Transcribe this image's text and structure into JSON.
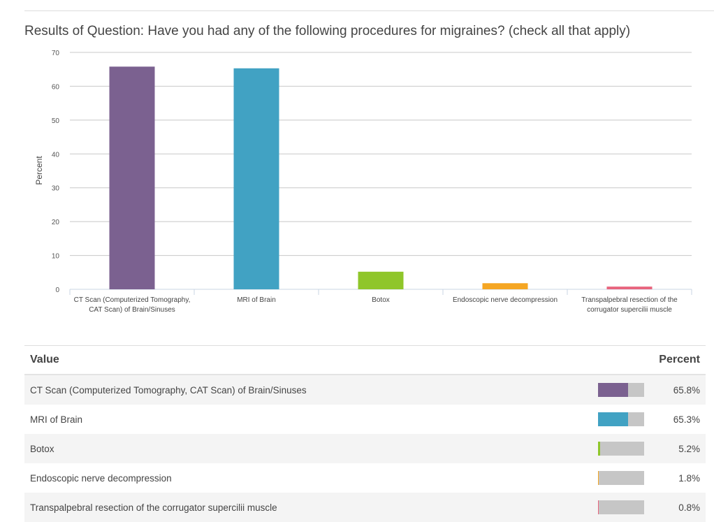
{
  "title": "Results of Question: Have you had any of the following procedures for migraines? (check all that apply)",
  "chart_data": {
    "type": "bar",
    "title": "Results of Question: Have you had any of the following procedures for migraines? (check all that apply)",
    "ylabel": "Percent",
    "xlabel": "",
    "ylim": [
      0,
      70
    ],
    "yticks": [
      "0",
      "10",
      "20",
      "30",
      "40",
      "50",
      "60",
      "70"
    ],
    "grid": true,
    "categories": [
      [
        "CT Scan (Computerized Tomography,",
        "CAT Scan) of Brain/Sinuses"
      ],
      [
        "MRI of Brain"
      ],
      [
        "Botox"
      ],
      [
        "Endoscopic nerve decompression"
      ],
      [
        "Transpalpebral resection of the",
        "corrugator supercilii muscle"
      ]
    ],
    "values": [
      65.8,
      65.3,
      5.2,
      1.8,
      0.8
    ],
    "colors": [
      "#7b6190",
      "#41a2c3",
      "#8fc62a",
      "#f5a623",
      "#e8657e"
    ]
  },
  "table": {
    "header_value": "Value",
    "header_percent": "Percent",
    "rows": [
      {
        "label": "CT Scan (Computerized Tomography, CAT Scan) of Brain/Sinuses",
        "percent": "65.8%"
      },
      {
        "label": "MRI of Brain",
        "percent": "65.3%"
      },
      {
        "label": "Botox",
        "percent": "5.2%"
      },
      {
        "label": "Endoscopic nerve decompression",
        "percent": "1.8%"
      },
      {
        "label": "Transpalpebral resection of the corrugator supercilii muscle",
        "percent": "0.8%"
      }
    ]
  }
}
